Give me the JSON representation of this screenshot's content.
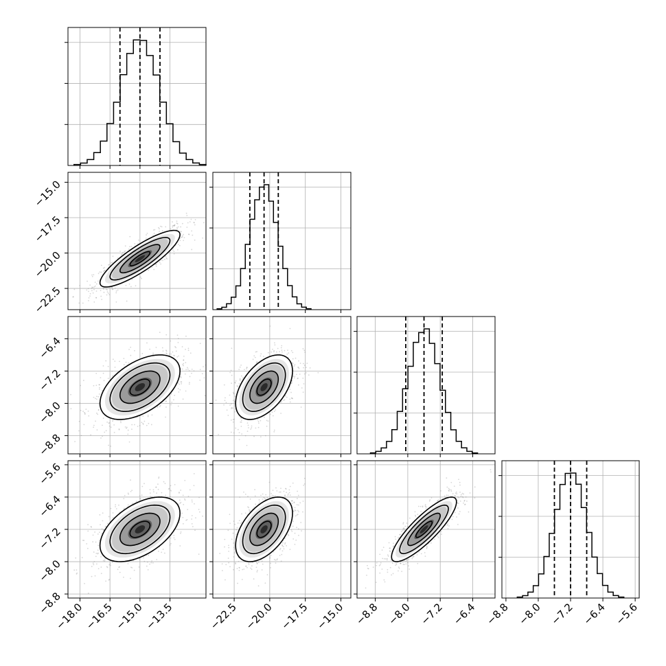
{
  "chart_data": {
    "type": "corner",
    "quantiles": [
      0.16,
      0.5,
      0.84
    ],
    "grid": true,
    "colors": {
      "line": "#000000",
      "grid": "#b0b0b0",
      "scatter": "#8a8a8a"
    },
    "parameters": [
      {
        "name": "",
        "range": [
          -18.6,
          -11.7
        ],
        "median": -15.0,
        "sigma": 1.0,
        "q16": -16.0,
        "q84": -14.0,
        "ticks": [
          -18.0,
          -16.5,
          -15.0,
          -13.5
        ],
        "tick_labels": [
          "−18.0",
          "−16.5",
          "−15.0",
          "−13.5"
        ]
      },
      {
        "name": "",
        "range": [
          -24.0,
          -14.3
        ],
        "median": -20.4,
        "sigma": 1.0,
        "q16": -21.4,
        "q84": -19.4,
        "ticks": [
          -22.5,
          -20.0,
          -17.5,
          -15.0
        ],
        "tick_labels": [
          "−22.5",
          "−20.0",
          "−17.5",
          "−15.0"
        ]
      },
      {
        "name": "",
        "range": [
          -9.25,
          -5.85
        ],
        "median": -7.6,
        "sigma": 0.4,
        "q16": -8.05,
        "q84": -7.15,
        "ticks": [
          -8.8,
          -8.0,
          -7.2,
          -6.4
        ],
        "tick_labels": [
          "−8.8",
          "−8.0",
          "−7.2",
          "−6.4"
        ]
      },
      {
        "name": "",
        "range": [
          -8.9,
          -5.5
        ],
        "median": -7.2,
        "sigma": 0.4,
        "q16": -7.6,
        "q84": -6.8,
        "ticks": [
          -8.8,
          -8.0,
          -7.2,
          -6.4,
          -5.6
        ],
        "tick_labels": [
          "−8.8",
          "−8.0",
          "−7.2",
          "−6.4",
          "−5.6"
        ]
      }
    ],
    "correlations": {
      "0-1": 0.85,
      "0-2": 0.5,
      "1-2": 0.5,
      "0-3": 0.5,
      "1-3": 0.5,
      "2-3": 0.85
    },
    "histogram_bins": 20,
    "histogram_ticks": [
      {
        "ticks": [
          0,
          0.333,
          0.667,
          1.0
        ]
      },
      {
        "ticks": [
          0,
          0.333,
          0.667,
          1.0
        ]
      },
      {
        "ticks": [
          0,
          0.333,
          0.667,
          1.0
        ]
      },
      {
        "ticks": [
          0,
          0.333,
          0.667,
          1.0
        ]
      }
    ],
    "contour_levels_sigma": [
      0.5,
      1.0,
      1.5,
      2.0
    ]
  }
}
